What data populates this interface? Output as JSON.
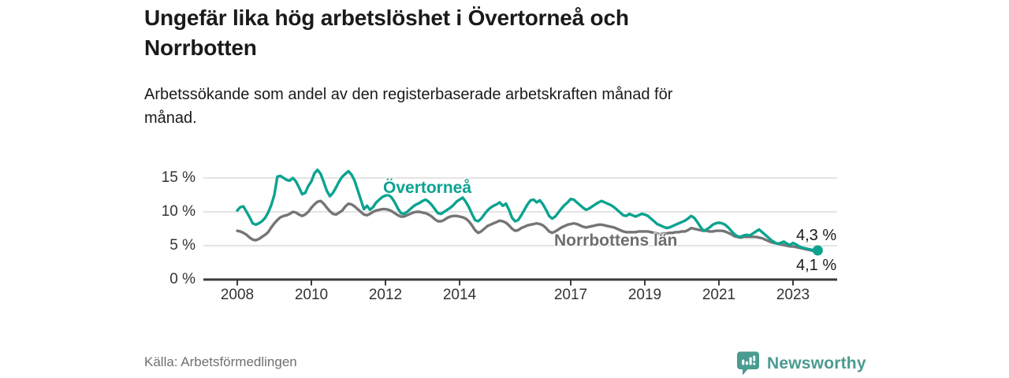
{
  "colors": {
    "overtornea_teal": "#0ba390",
    "norrbotten_gray": "#757575",
    "norrbotten_label_gray": "#6e6e6e",
    "axis_line": "#3a3a3a",
    "grid_line": "#dcdcdc",
    "tick_text": "#333333",
    "heading_text": "#1a1a1a",
    "muted_text": "#707070",
    "brand_teal": "#4a9b91"
  },
  "chart_data": {
    "type": "line",
    "title": "Ungefär lika hög arbetslöshet i Övertorneå och Norrbotten",
    "title_lines": [
      "Ungefär lika hög arbetslöshet i Övertorneå och",
      "Norrbotten"
    ],
    "subtitle": "Arbetssökande som andel av den registerbaserade arbetskraften månad för månad.",
    "subtitle_lines": [
      "Arbetssökande som andel av den registerbaserade arbetskraften månad för",
      "månad."
    ],
    "source": "Källa: Arbetsförmedlingen",
    "xlabel": "",
    "ylabel": "",
    "x_unit": "decimal-year, monthly points",
    "x_start_year": 2008,
    "x_end_year": 2023.67,
    "x_ticks": [
      2008,
      2010,
      2012,
      2014,
      2017,
      2019,
      2021,
      2023
    ],
    "x_tick_labels": [
      "2008",
      "2010",
      "2012",
      "2014",
      "2017",
      "2019",
      "2021",
      "2023"
    ],
    "y_ticks": [
      0,
      5,
      10,
      15
    ],
    "y_tick_labels": [
      "0 %",
      "5 %",
      "10 %",
      "15 %"
    ],
    "ylim": [
      0,
      16.6
    ],
    "grid": "horizontal-only",
    "legend_position": "inline-labels-on-lines",
    "series": [
      {
        "name": "Övertorneå",
        "color": "#0ba390",
        "end_label": "4,3 %",
        "end_dot": true,
        "values": [
          10.2,
          10.7,
          10.8,
          10.0,
          9.2,
          8.3,
          8.1,
          8.3,
          8.6,
          9.1,
          9.9,
          11.0,
          12.5,
          15.2,
          15.3,
          15.0,
          14.7,
          14.6,
          15.0,
          14.5,
          13.6,
          12.6,
          12.8,
          13.8,
          14.5,
          15.7,
          16.2,
          15.6,
          14.4,
          13.1,
          12.3,
          12.8,
          13.6,
          14.5,
          15.2,
          15.6,
          16.0,
          15.5,
          14.6,
          13.2,
          11.8,
          10.4,
          10.9,
          10.3,
          10.7,
          11.4,
          11.8,
          12.2,
          12.4,
          12.5,
          12.1,
          11.4,
          10.5,
          9.8,
          9.7,
          10.0,
          10.4,
          10.8,
          11.1,
          11.3,
          11.6,
          11.8,
          11.5,
          11.0,
          10.4,
          9.8,
          9.7,
          10.0,
          10.3,
          10.6,
          11.0,
          11.5,
          11.8,
          12.1,
          11.5,
          10.7,
          9.7,
          8.8,
          8.6,
          9.0,
          9.6,
          10.2,
          10.6,
          10.9,
          11.1,
          11.4,
          10.9,
          11.2,
          10.3,
          9.1,
          8.6,
          8.8,
          9.5,
          10.3,
          11.1,
          11.7,
          11.8,
          11.4,
          11.7,
          11.1,
          10.3,
          9.4,
          9.0,
          9.3,
          9.9,
          10.5,
          11.0,
          11.4,
          11.9,
          11.8,
          11.4,
          11.0,
          10.6,
          10.3,
          10.5,
          10.8,
          11.1,
          11.4,
          11.6,
          11.4,
          11.2,
          11.0,
          10.7,
          10.3,
          9.9,
          9.5,
          9.4,
          9.7,
          9.5,
          9.3,
          9.5,
          9.7,
          9.6,
          9.4,
          9.0,
          8.6,
          8.2,
          8.0,
          7.8,
          7.6,
          7.7,
          7.9,
          8.1,
          8.3,
          8.5,
          8.7,
          9.0,
          9.4,
          9.1,
          8.5,
          7.8,
          7.2,
          7.4,
          7.7,
          8.1,
          8.3,
          8.4,
          8.3,
          8.1,
          7.7,
          7.2,
          6.7,
          6.4,
          6.3,
          6.5,
          6.6,
          6.5,
          6.8,
          7.1,
          7.4,
          7.0,
          6.6,
          6.2,
          5.8,
          5.5,
          5.3,
          5.4,
          5.6,
          5.3,
          5.1,
          5.4,
          5.2,
          4.9,
          4.7,
          4.6,
          4.5,
          4.4,
          4.3,
          4.3
        ]
      },
      {
        "name": "Norrbottens län",
        "color": "#757575",
        "end_label": "4,1 %",
        "end_dot": false,
        "values": [
          7.2,
          7.1,
          6.9,
          6.6,
          6.2,
          5.9,
          5.8,
          6.0,
          6.3,
          6.6,
          7.0,
          7.7,
          8.3,
          8.8,
          9.2,
          9.4,
          9.5,
          9.7,
          10.0,
          9.9,
          9.6,
          9.4,
          9.6,
          10.0,
          10.6,
          11.1,
          11.5,
          11.6,
          11.2,
          10.6,
          10.1,
          9.7,
          9.6,
          9.9,
          10.2,
          10.8,
          11.2,
          11.1,
          10.8,
          10.4,
          10.0,
          9.6,
          9.5,
          9.7,
          10.0,
          10.2,
          10.3,
          10.4,
          10.4,
          10.3,
          10.1,
          9.8,
          9.5,
          9.3,
          9.3,
          9.5,
          9.7,
          9.9,
          10.0,
          10.0,
          9.9,
          9.8,
          9.6,
          9.3,
          8.9,
          8.6,
          8.6,
          8.8,
          9.1,
          9.3,
          9.4,
          9.4,
          9.3,
          9.2,
          9.0,
          8.6,
          8.0,
          7.3,
          6.9,
          7.1,
          7.5,
          7.9,
          8.1,
          8.3,
          8.5,
          8.7,
          8.6,
          8.4,
          8.0,
          7.5,
          7.2,
          7.3,
          7.6,
          7.8,
          8.0,
          8.1,
          8.2,
          8.3,
          8.2,
          8.0,
          7.6,
          7.1,
          6.9,
          7.1,
          7.4,
          7.7,
          7.9,
          8.1,
          8.2,
          8.3,
          8.2,
          8.0,
          7.8,
          7.7,
          7.8,
          7.9,
          8.0,
          8.1,
          8.1,
          8.0,
          7.9,
          7.8,
          7.7,
          7.5,
          7.3,
          7.1,
          7.0,
          7.0,
          7.0,
          7.0,
          7.1,
          7.1,
          7.1,
          7.1,
          7.0,
          6.9,
          6.8,
          6.7,
          6.8,
          6.8,
          6.9,
          6.9,
          7.0,
          7.0,
          7.1,
          7.1,
          7.3,
          7.6,
          7.5,
          7.4,
          7.3,
          7.2,
          7.2,
          7.1,
          7.1,
          7.2,
          7.2,
          7.2,
          7.1,
          6.9,
          6.7,
          6.4,
          6.3,
          6.2,
          6.3,
          6.3,
          6.3,
          6.3,
          6.3,
          6.2,
          6.1,
          5.9,
          5.7,
          5.5,
          5.4,
          5.3,
          5.2,
          5.1,
          5.0,
          4.9,
          4.9,
          4.8,
          4.7,
          4.6,
          4.5,
          4.4,
          4.3,
          4.2,
          4.1
        ]
      }
    ]
  },
  "footer": {
    "brand": "Newsworthy"
  }
}
